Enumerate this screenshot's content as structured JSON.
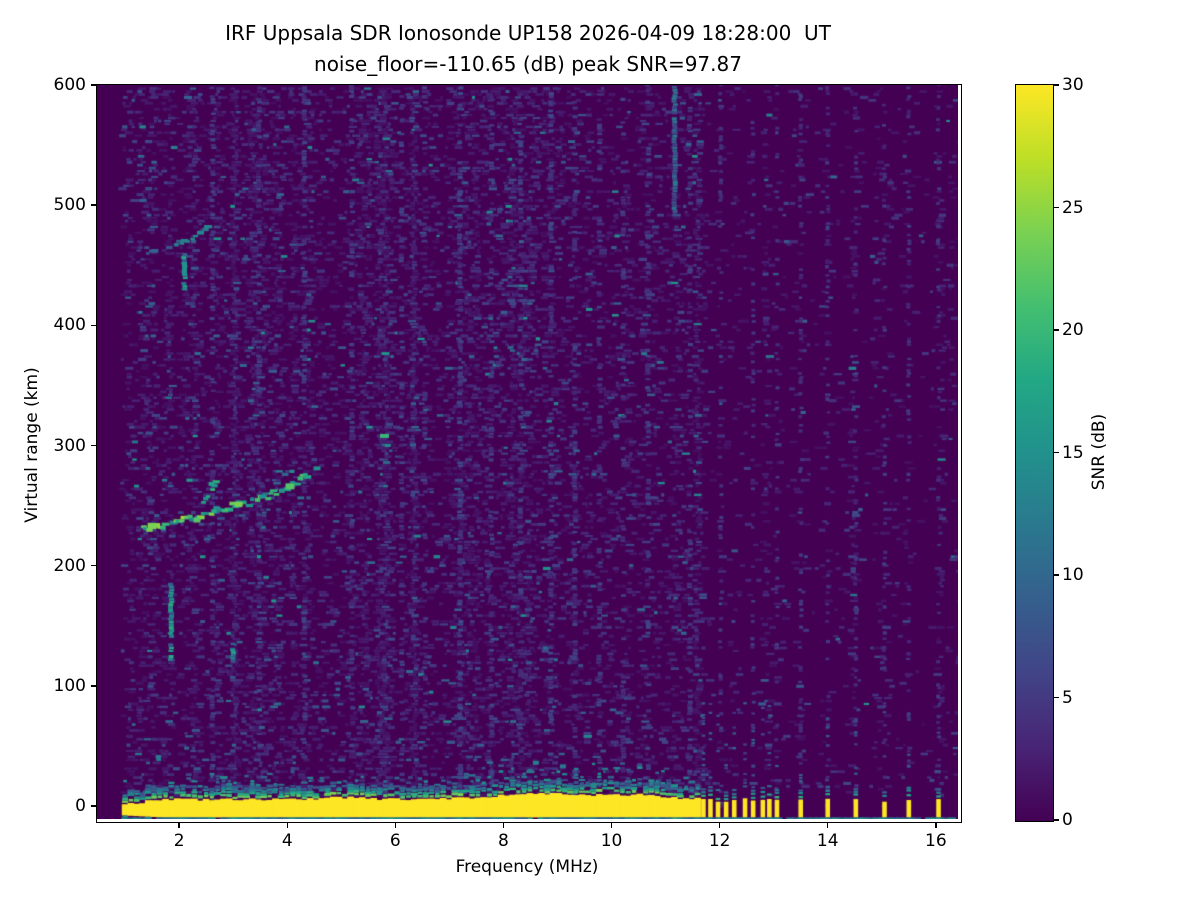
{
  "chart_data": {
    "type": "heatmap",
    "title": "IRF Uppsala SDR Ionosonde UP158 2026-04-09 18:28:00  UT",
    "subtitle": "noise_floor=-110.65 (dB) peak SNR=97.87",
    "xlabel": "Frequency (MHz)",
    "ylabel": "Virtual range (km)",
    "xlim": [
      0.48,
      16.41
    ],
    "ylim": [
      -10.8,
      600
    ],
    "xticks": [
      2,
      4,
      6,
      8,
      10,
      12,
      14,
      16
    ],
    "yticks": [
      0,
      100,
      200,
      300,
      400,
      500,
      600
    ],
    "grid": false,
    "colorbar": {
      "label": "SNR (dB)",
      "min": 0,
      "max": 30,
      "ticks": [
        0,
        5,
        10,
        15,
        20,
        25,
        30
      ],
      "colormap": "viridis"
    },
    "colormap_stops": [
      [
        0.0,
        "#440154"
      ],
      [
        0.1,
        "#482475"
      ],
      [
        0.2,
        "#414487"
      ],
      [
        0.3,
        "#355f8d"
      ],
      [
        0.4,
        "#2a788e"
      ],
      [
        0.5,
        "#21918c"
      ],
      [
        0.6,
        "#22a884"
      ],
      [
        0.7,
        "#44bf70"
      ],
      [
        0.8,
        "#7ad151"
      ],
      [
        0.9,
        "#bddf26"
      ],
      [
        1.0,
        "#fde725"
      ]
    ],
    "noise": {
      "f_start": 1.0,
      "df": 0.107,
      "dkm": 2.45,
      "km_min": 9,
      "km_max": 598,
      "regions": [
        {
          "f0": 0.48,
          "f1": 1.0,
          "d": 0.0
        },
        {
          "f0": 1.0,
          "f1": 2.0,
          "d": 0.85
        },
        {
          "f0": 2.0,
          "f1": 9.0,
          "d": 1.0
        },
        {
          "f0": 9.0,
          "f1": 11.62,
          "d": 0.72
        },
        {
          "f0": 11.62,
          "f1": 16.41,
          "d": 0.13
        }
      ]
    },
    "features": {
      "ground_band": {
        "f0": 1.0,
        "f1": 11.62,
        "core_top_km": 5.5,
        "core_bot_km": -9.5,
        "taper_until_mhz": 1.7,
        "haze_top_km": 30,
        "bulges": [
          {
            "f": 8.8,
            "w": 1.3,
            "extra_km": 5
          },
          {
            "f": 10.6,
            "w": 0.7,
            "extra_km": 3
          },
          {
            "f": 5.0,
            "w": 0.6,
            "extra_km": 1.5
          }
        ]
      },
      "bottom_line": {
        "f0": 1.0,
        "f1": 16.35,
        "km_top": -9.8,
        "km_bot": -10.8,
        "snr": 13
      },
      "tx_columns": {
        "freqs": [
          11.7,
          11.83,
          11.97,
          12.12,
          12.27,
          12.47,
          12.62,
          12.8,
          12.92,
          13.06,
          13.5,
          14.0,
          14.52,
          15.05,
          15.5,
          16.05
        ],
        "core_top_km": 5,
        "core_bot_km": -9.5,
        "cap_top_km": 18
      },
      "echo_traces": [
        {
          "name": "F-trace-main",
          "points": [
            [
              1.35,
              231
            ],
            [
              1.7,
              234
            ],
            [
              2.05,
              238
            ],
            [
              2.4,
              242
            ],
            [
              2.75,
              246
            ],
            [
              3.05,
              250
            ],
            [
              3.3,
              253
            ]
          ],
          "snr": [
            13,
            26
          ],
          "thickness_km": 5,
          "density": 0.9
        },
        {
          "name": "F-trace-upper",
          "points": [
            [
              3.3,
              253
            ],
            [
              3.65,
              258
            ],
            [
              3.95,
              263
            ],
            [
              4.2,
              269
            ],
            [
              4.42,
              277
            ]
          ],
          "snr": [
            12,
            24
          ],
          "thickness_km": 6,
          "density": 0.8
        },
        {
          "name": "F-cusp-scatter",
          "points": [
            [
              2.45,
              252
            ],
            [
              2.62,
              263
            ],
            [
              2.75,
              274
            ]
          ],
          "snr": [
            10,
            20
          ],
          "thickness_km": 5,
          "density": 0.5
        },
        {
          "name": "second-hop-trace",
          "points": [
            [
              1.5,
              461
            ],
            [
              1.8,
              465
            ],
            [
              2.1,
              470
            ],
            [
              2.35,
              476
            ],
            [
              2.58,
              483
            ]
          ],
          "snr": [
            6,
            14
          ],
          "thickness_km": 4,
          "density": 0.55
        }
      ],
      "rfi_stripes": [
        {
          "f": 1.85,
          "km0": 122,
          "km1": 185,
          "snr": 14,
          "density": 0.8,
          "w": 5
        },
        {
          "f": 2.1,
          "km0": 430,
          "km1": 460,
          "snr": 13,
          "density": 0.85,
          "w": 5
        },
        {
          "f": 3.0,
          "km0": 118,
          "km1": 142,
          "snr": 12,
          "density": 0.8,
          "w": 5
        },
        {
          "f": 11.17,
          "km0": 495,
          "km1": 600,
          "snr": 9,
          "density": 0.95,
          "w": 5
        },
        {
          "f": 2.62,
          "km0": 0,
          "km1": 600,
          "snr": 4.5,
          "density": 0.33,
          "w": 5
        },
        {
          "f": 3.48,
          "km0": 0,
          "km1": 600,
          "snr": 4.5,
          "density": 0.3,
          "w": 5
        },
        {
          "f": 4.32,
          "km0": 0,
          "km1": 600,
          "snr": 4.5,
          "density": 0.3,
          "w": 5
        },
        {
          "f": 5.2,
          "km0": 0,
          "km1": 600,
          "snr": 4.5,
          "density": 0.28,
          "w": 5
        },
        {
          "f": 6.12,
          "km0": 0,
          "km1": 600,
          "snr": 4.5,
          "density": 0.3,
          "w": 5
        },
        {
          "f": 6.55,
          "km0": 0,
          "km1": 600,
          "snr": 4.0,
          "density": 0.25,
          "w": 5
        },
        {
          "f": 7.2,
          "km0": 0,
          "km1": 600,
          "snr": 5.0,
          "density": 0.38,
          "w": 5
        },
        {
          "f": 7.78,
          "km0": 0,
          "km1": 600,
          "snr": 4.5,
          "density": 0.3,
          "w": 5
        },
        {
          "f": 8.32,
          "km0": 0,
          "km1": 600,
          "snr": 4.5,
          "density": 0.3,
          "w": 5
        },
        {
          "f": 8.88,
          "km0": 0,
          "km1": 600,
          "snr": 5.0,
          "density": 0.33,
          "w": 5
        },
        {
          "f": 9.32,
          "km0": 0,
          "km1": 600,
          "snr": 4.5,
          "density": 0.3,
          "w": 5
        },
        {
          "f": 9.78,
          "km0": 0,
          "km1": 600,
          "snr": 4.5,
          "density": 0.28,
          "w": 5
        },
        {
          "f": 10.22,
          "km0": 0,
          "km1": 600,
          "snr": 4.5,
          "density": 0.28,
          "w": 5
        },
        {
          "f": 10.68,
          "km0": 0,
          "km1": 600,
          "snr": 4.5,
          "density": 0.26,
          "w": 5
        },
        {
          "f": 11.45,
          "km0": 0,
          "km1": 600,
          "snr": 4.5,
          "density": 0.3,
          "w": 5
        },
        {
          "f": 12.02,
          "km0": 0,
          "km1": 600,
          "snr": 4.0,
          "density": 0.22,
          "w": 4
        },
        {
          "f": 12.62,
          "km0": 0,
          "km1": 600,
          "snr": 4.0,
          "density": 0.2,
          "w": 4
        },
        {
          "f": 13.06,
          "km0": 0,
          "km1": 600,
          "snr": 4.0,
          "density": 0.2,
          "w": 4
        },
        {
          "f": 13.5,
          "km0": 0,
          "km1": 600,
          "snr": 4.0,
          "density": 0.2,
          "w": 4
        },
        {
          "f": 14.0,
          "km0": 0,
          "km1": 600,
          "snr": 4.0,
          "density": 0.2,
          "w": 4
        },
        {
          "f": 14.52,
          "km0": 0,
          "km1": 600,
          "snr": 4.0,
          "density": 0.18,
          "w": 4
        },
        {
          "f": 15.05,
          "km0": 0,
          "km1": 600,
          "snr": 4.0,
          "density": 0.18,
          "w": 4
        },
        {
          "f": 15.5,
          "km0": 0,
          "km1": 600,
          "snr": 4.0,
          "density": 0.18,
          "w": 4
        },
        {
          "f": 16.05,
          "km0": 0,
          "km1": 600,
          "snr": 4.0,
          "density": 0.18,
          "w": 4
        }
      ],
      "bright_blobs": [
        {
          "f": 5.8,
          "km": 308,
          "snr": 20,
          "w": 9,
          "h": 4
        },
        {
          "f": 5.86,
          "km": 300,
          "snr": 14,
          "w": 6,
          "h": 3
        },
        {
          "f": 2.6,
          "km": 268,
          "snr": 17,
          "w": 6,
          "h": 4
        },
        {
          "f": 4.55,
          "km": 281,
          "snr": 15,
          "w": 7,
          "h": 4
        },
        {
          "f": 2.1,
          "km": 447,
          "snr": 15,
          "w": 5,
          "h": 14
        },
        {
          "f": 2.33,
          "km": 238,
          "snr": 22,
          "w": 7,
          "h": 5
        },
        {
          "f": 1.5,
          "km": 233,
          "snr": 24,
          "w": 9,
          "h": 6
        },
        {
          "f": 3.1,
          "km": 251,
          "snr": 24,
          "w": 8,
          "h": 5
        },
        {
          "f": 4.05,
          "km": 266,
          "snr": 22,
          "w": 9,
          "h": 6
        },
        {
          "f": 1.62,
          "km": 40,
          "snr": 12,
          "w": 5,
          "h": 6
        },
        {
          "f": 8.6,
          "km": 36,
          "snr": 13,
          "w": 6,
          "h": 4
        },
        {
          "f": 9.1,
          "km": 33,
          "snr": 12,
          "w": 6,
          "h": 4
        }
      ]
    }
  }
}
